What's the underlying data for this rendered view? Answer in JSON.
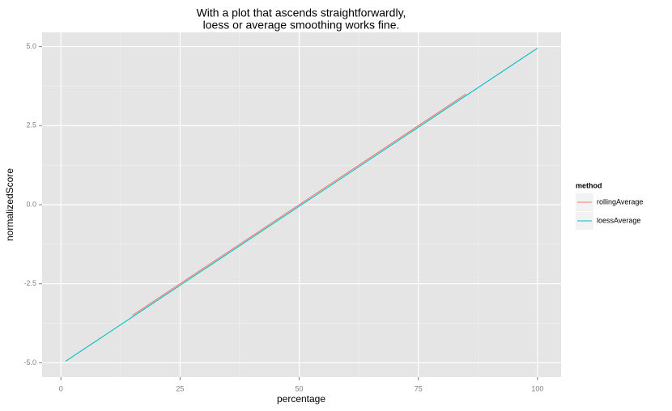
{
  "chart_data": {
    "type": "line",
    "title": [
      "With a plot that ascends straightforwardly,",
      "loess or average smoothing works fine."
    ],
    "x_label": "percentage",
    "y_label": "normalizedScore",
    "legend_title": "method",
    "series": [
      {
        "name": "rollingAverage",
        "color": "#f8766d",
        "x": [
          15,
          50,
          85
        ],
        "values": [
          -3.5,
          0,
          3.5
        ]
      },
      {
        "name": "loessAverage",
        "color": "#00bfc4",
        "x": [
          1,
          50,
          100
        ],
        "values": [
          -4.95,
          -0.05,
          4.95
        ]
      }
    ],
    "xlim": [
      -3.95,
      104.95
    ],
    "xticks": [
      0,
      25,
      50,
      75,
      100
    ],
    "ylim": [
      -5.45,
      5.45
    ],
    "yticks": [
      {
        "value": -5,
        "label": "-5.0"
      },
      {
        "value": -2.5,
        "label": "-2.5"
      },
      {
        "value": 0,
        "label": "0.0"
      },
      {
        "value": 2.5,
        "label": "2.5"
      },
      {
        "value": 5,
        "label": "5.0"
      }
    ],
    "minor_xticks": [
      12.5,
      37.5,
      62.5,
      87.5
    ],
    "minor_yticks": [
      -3.75,
      -1.25,
      1.25,
      3.75
    ],
    "grid": true,
    "legend_position": "right"
  }
}
